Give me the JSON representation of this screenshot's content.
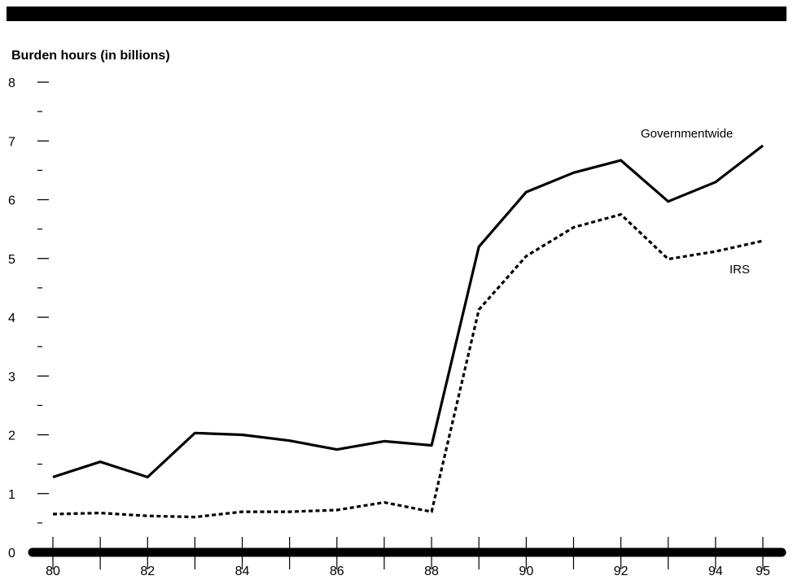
{
  "chart_data": {
    "type": "line",
    "ylabel": "Burden hours (in billions)",
    "ylim": [
      0,
      8
    ],
    "y_ticks": [
      "0",
      "1",
      "2",
      "3",
      "4",
      "5",
      "6",
      "7",
      "8"
    ],
    "x": [
      1980,
      1981,
      1982,
      1983,
      1984,
      1985,
      1986,
      1987,
      1988,
      1989,
      1990,
      1991,
      1992,
      1993,
      1994,
      1995
    ],
    "x_tick_labels": [
      {
        "x": 1980,
        "label": "80"
      },
      {
        "x": 1982,
        "label": "82"
      },
      {
        "x": 1984,
        "label": "84"
      },
      {
        "x": 1986,
        "label": "86"
      },
      {
        "x": 1988,
        "label": "88"
      },
      {
        "x": 1990,
        "label": "90"
      },
      {
        "x": 1992,
        "label": "92"
      },
      {
        "x": 1994,
        "label": "94"
      },
      {
        "x": 1995,
        "label": "95"
      }
    ],
    "series": [
      {
        "name": "Governmentwide",
        "style": "solid",
        "values": [
          1.28,
          1.54,
          1.28,
          2.03,
          2.0,
          1.9,
          1.75,
          1.89,
          1.82,
          5.2,
          6.13,
          6.46,
          6.67,
          5.97,
          6.3,
          6.92
        ]
      },
      {
        "name": "IRS",
        "style": "dotted",
        "values": [
          0.65,
          0.67,
          0.62,
          0.6,
          0.69,
          0.69,
          0.72,
          0.85,
          0.69,
          4.13,
          5.04,
          5.53,
          5.75,
          4.99,
          5.12,
          5.3
        ]
      }
    ],
    "grid": false,
    "legend": "inline labels"
  }
}
